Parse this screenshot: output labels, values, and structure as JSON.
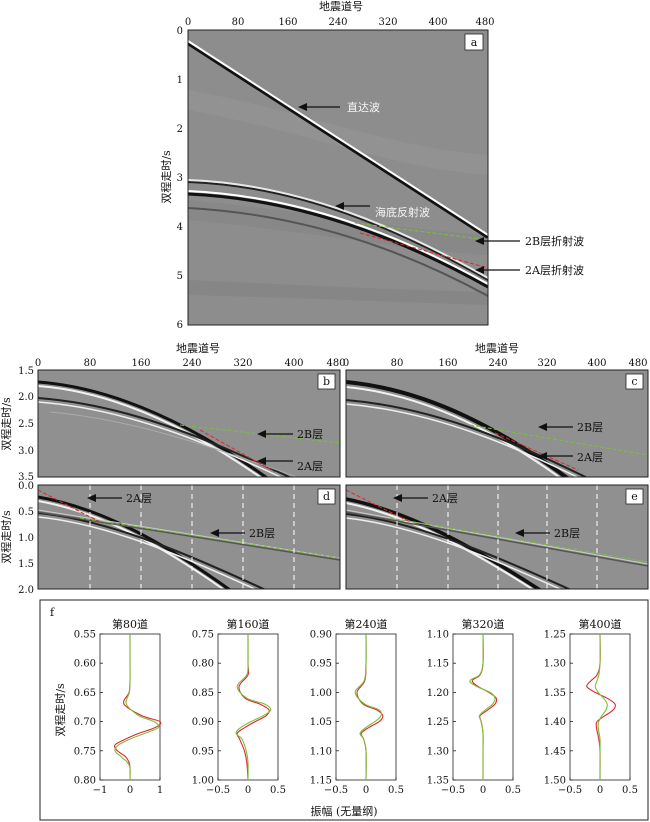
{
  "top_axis": {
    "title": "地震道号",
    "ticks": [
      "0",
      "80",
      "160",
      "240",
      "320",
      "400",
      "480"
    ]
  },
  "mid_axis": {
    "title": "地震道号",
    "ticks": [
      "0",
      "80",
      "160",
      "240",
      "320",
      "400",
      "480"
    ]
  },
  "ylabel_time": "双程走时/s",
  "panel_a": {
    "letter": "a",
    "yticks": [
      "0",
      "1",
      "2",
      "3",
      "4",
      "5",
      "6"
    ],
    "labels": {
      "direct": "直达波",
      "seafloor": "海底反射波",
      "refr2b": "2B层折射波",
      "refr2a": "2A层折射波"
    }
  },
  "panel_b": {
    "letter": "b",
    "yticks": [
      "1.5",
      "2.0",
      "2.5",
      "3.0",
      "3.5"
    ],
    "labels": {
      "l2b": "2B层",
      "l2a": "2A层"
    }
  },
  "panel_c": {
    "letter": "c",
    "labels": {
      "l2b": "2B层",
      "l2a": "2A层"
    }
  },
  "panel_d": {
    "letter": "d",
    "yticks": [
      "0.0",
      "0.5",
      "1.0",
      "1.5",
      "2.0"
    ],
    "labels": {
      "l2a": "2A层",
      "l2b": "2B层"
    }
  },
  "panel_e": {
    "letter": "e",
    "labels": {
      "l2a": "2A层",
      "l2b": "2B层"
    }
  },
  "panel_f": {
    "letter": "f",
    "xlabel": "振幅 (无量纲)",
    "ylabel": "双程走时/s"
  },
  "colors": {
    "red": "#e0262b",
    "green": "#7bbf3a",
    "seismic_bg": "#8f8f8f"
  },
  "chart_data": [
    {
      "type": "line",
      "title": "第80道",
      "ylabel": "双程走时/s",
      "ylim": [
        0.55,
        0.8
      ],
      "yticks": [
        "0.55",
        "0.60",
        "0.65",
        "0.70",
        "0.75",
        "0.80"
      ],
      "xlim": [
        -1,
        1
      ],
      "xticks": [
        "−1",
        "0",
        "1"
      ],
      "series": [
        {
          "color": "red",
          "time": [
            0.55,
            0.6,
            0.63,
            0.65,
            0.67,
            0.69,
            0.7,
            0.71,
            0.72,
            0.73,
            0.74,
            0.75,
            0.76,
            0.77,
            0.78,
            0.8
          ],
          "amplitude": [
            0,
            0,
            0,
            -0.03,
            -0.2,
            0.4,
            1.0,
            0.85,
            0.3,
            -0.15,
            -0.5,
            -0.42,
            -0.15,
            -0.03,
            0,
            0
          ]
        },
        {
          "color": "green",
          "time": [
            0.55,
            0.6,
            0.63,
            0.65,
            0.67,
            0.69,
            0.7,
            0.71,
            0.72,
            0.73,
            0.74,
            0.75,
            0.76,
            0.77,
            0.78,
            0.8
          ],
          "amplitude": [
            0,
            0,
            0,
            -0.02,
            -0.12,
            0.3,
            0.8,
            0.95,
            0.5,
            0.0,
            -0.38,
            -0.5,
            -0.3,
            -0.08,
            0,
            0
          ]
        }
      ]
    },
    {
      "type": "line",
      "title": "第160道",
      "ylabel": "",
      "ylim": [
        0.75,
        1.0
      ],
      "yticks": [
        "0.75",
        "0.80",
        "0.85",
        "0.90",
        "0.95",
        "1.00"
      ],
      "xlim": [
        -0.5,
        0.5
      ],
      "xticks": [
        "−0.5",
        "0",
        "0.5"
      ],
      "series": [
        {
          "color": "red",
          "time": [
            0.75,
            0.8,
            0.82,
            0.84,
            0.86,
            0.87,
            0.88,
            0.89,
            0.9,
            0.91,
            0.92,
            0.93,
            0.95,
            0.97,
            1.0
          ],
          "amplitude": [
            0,
            0,
            0,
            -0.15,
            -0.05,
            0.2,
            0.35,
            0.3,
            0.12,
            -0.05,
            -0.18,
            -0.14,
            -0.06,
            -0.02,
            0
          ]
        },
        {
          "color": "green",
          "time": [
            0.75,
            0.8,
            0.82,
            0.84,
            0.86,
            0.87,
            0.88,
            0.89,
            0.9,
            0.91,
            0.92,
            0.93,
            0.95,
            0.97,
            1.0
          ],
          "amplitude": [
            0,
            0,
            -0.02,
            -0.18,
            -0.02,
            0.28,
            0.38,
            0.25,
            0.05,
            -0.12,
            -0.2,
            -0.1,
            -0.03,
            0,
            0
          ]
        }
      ]
    },
    {
      "type": "line",
      "title": "第240道",
      "ylabel": "",
      "ylim": [
        0.9,
        1.15
      ],
      "yticks": [
        "0.90",
        "0.95",
        "1.00",
        "1.05",
        "1.10",
        "1.15"
      ],
      "xlim": [
        -0.5,
        0.5
      ],
      "xticks": [
        "−0.5",
        "0",
        "0.5"
      ],
      "series": [
        {
          "color": "red",
          "time": [
            0.9,
            0.95,
            0.98,
            1.0,
            1.02,
            1.03,
            1.04,
            1.05,
            1.06,
            1.07,
            1.08,
            1.1,
            1.15
          ],
          "amplitude": [
            0,
            0,
            -0.02,
            -0.15,
            -0.05,
            0.18,
            0.28,
            0.22,
            0.05,
            -0.08,
            -0.04,
            0,
            0
          ]
        },
        {
          "color": "green",
          "time": [
            0.9,
            0.95,
            0.98,
            1.0,
            1.02,
            1.03,
            1.04,
            1.05,
            1.06,
            1.07,
            1.08,
            1.1,
            1.15
          ],
          "amplitude": [
            0,
            0,
            -0.03,
            -0.18,
            -0.02,
            0.22,
            0.25,
            0.15,
            0.0,
            -0.1,
            -0.04,
            0,
            0
          ]
        }
      ]
    },
    {
      "type": "line",
      "title": "第320道",
      "ylabel": "",
      "ylim": [
        1.1,
        1.35
      ],
      "yticks": [
        "1.10",
        "1.15",
        "1.20",
        "1.25",
        "1.30",
        "1.35"
      ],
      "xlim": [
        -0.5,
        0.5
      ],
      "xticks": [
        "−0.5",
        "0",
        "0.5"
      ],
      "series": [
        {
          "color": "red",
          "time": [
            1.1,
            1.15,
            1.17,
            1.18,
            1.19,
            1.2,
            1.21,
            1.22,
            1.23,
            1.24,
            1.25,
            1.27,
            1.3,
            1.35
          ],
          "amplitude": [
            0,
            0,
            -0.05,
            -0.18,
            -0.08,
            0.1,
            0.22,
            0.2,
            0.08,
            -0.05,
            -0.03,
            0,
            0,
            0
          ]
        },
        {
          "color": "green",
          "time": [
            1.1,
            1.15,
            1.17,
            1.18,
            1.19,
            1.2,
            1.21,
            1.22,
            1.23,
            1.24,
            1.25,
            1.27,
            1.3,
            1.35
          ],
          "amplitude": [
            0,
            0,
            -0.06,
            -0.22,
            -0.1,
            0.12,
            0.2,
            0.16,
            0.04,
            -0.06,
            -0.03,
            0,
            0,
            0
          ]
        }
      ]
    },
    {
      "type": "line",
      "title": "第400道",
      "ylabel": "",
      "ylim": [
        1.25,
        1.5
      ],
      "yticks": [
        "1.25",
        "1.30",
        "1.35",
        "1.40",
        "1.45",
        "1.50"
      ],
      "xlim": [
        -0.5,
        0.5
      ],
      "xticks": [
        "−0.5",
        "0",
        "0.5"
      ],
      "series": [
        {
          "color": "red",
          "time": [
            1.25,
            1.3,
            1.32,
            1.33,
            1.34,
            1.35,
            1.36,
            1.37,
            1.38,
            1.39,
            1.4,
            1.41,
            1.43,
            1.45,
            1.5
          ],
          "amplitude": [
            0,
            0,
            -0.05,
            -0.15,
            -0.22,
            -0.08,
            0.12,
            0.25,
            0.22,
            0.08,
            -0.05,
            -0.06,
            -0.02,
            0,
            0
          ]
        },
        {
          "color": "green",
          "time": [
            1.25,
            1.3,
            1.32,
            1.33,
            1.34,
            1.35,
            1.36,
            1.37,
            1.38,
            1.39,
            1.4,
            1.41,
            1.43,
            1.45,
            1.5
          ],
          "amplitude": [
            0,
            0,
            -0.02,
            -0.05,
            -0.08,
            -0.03,
            0.06,
            0.12,
            0.1,
            0.03,
            -0.02,
            -0.03,
            0,
            0,
            0
          ]
        }
      ]
    }
  ]
}
